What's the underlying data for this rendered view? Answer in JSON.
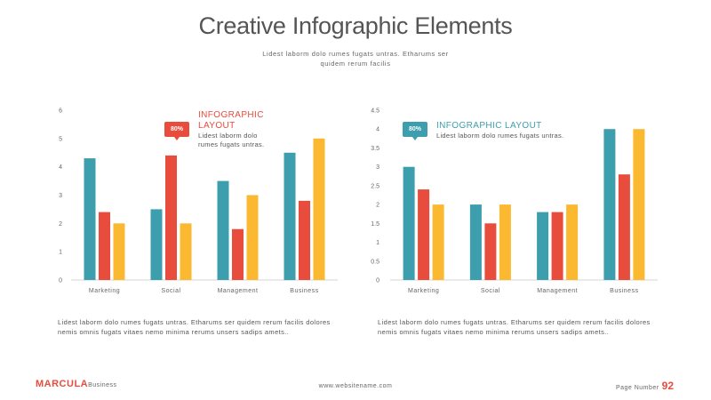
{
  "header": {
    "title": "Creative Infographic Elements",
    "subtitle": "Lidest laborm dolo rumes fugats untras. Etharums ser quidem rerum facilis"
  },
  "colors": {
    "teal": "#3d9fae",
    "red": "#e84c3d",
    "yellow": "#fbb931"
  },
  "left_panel": {
    "badge": "80%",
    "info_title": "INFOGRAPHIC LAYOUT",
    "info_text": "Lidest laborm dolo rumes fugats untras.",
    "paragraph": "Lidest laborm dolo rumes fugats untras. Etharums ser quidem rerum facilis dolores nemis omnis fugats vitaes nemo minima rerums unsers sadips amets.."
  },
  "right_panel": {
    "badge": "80%",
    "info_title": "INFOGRAPHIC LAYOUT",
    "info_text": "Lidest laborm dolo rumes fugats untras.",
    "paragraph": "Lidest laborm dolo rumes fugats untras. Etharums ser quidem rerum facilis dolores nemis omnis fugats vitaes nemo minima rerums unsers sadips amets.."
  },
  "chart_data": [
    {
      "type": "bar",
      "categories": [
        "Marketing",
        "Social",
        "Management",
        "Business"
      ],
      "series": [
        {
          "values": [
            4.3,
            2.5,
            3.5,
            4.5
          ]
        },
        {
          "values": [
            2.4,
            4.4,
            1.8,
            2.8
          ]
        },
        {
          "values": [
            2.0,
            2.0,
            3.0,
            5.0
          ]
        }
      ],
      "yticks": [
        "0",
        "1",
        "2",
        "3",
        "4",
        "5",
        "6"
      ],
      "ylim": [
        0,
        6
      ],
      "grid": false
    },
    {
      "type": "bar",
      "categories": [
        "Marketing",
        "Social",
        "Management",
        "Business"
      ],
      "series": [
        {
          "values": [
            3.0,
            2.0,
            1.8,
            4.0
          ]
        },
        {
          "values": [
            2.4,
            1.5,
            1.8,
            2.8
          ]
        },
        {
          "values": [
            2.0,
            2.0,
            2.0,
            4.0
          ]
        }
      ],
      "yticks": [
        "0",
        "0.5",
        "1",
        "1.5",
        "2",
        "2.5",
        "3",
        "3.5",
        "4",
        "4.5"
      ],
      "ylim": [
        0,
        4.5
      ],
      "grid": false
    }
  ],
  "footer": {
    "brand": "MARCULA",
    "brand_sub": "Business",
    "website": "www.websitename.com",
    "page_label": "Page Number",
    "page_number": "92"
  }
}
